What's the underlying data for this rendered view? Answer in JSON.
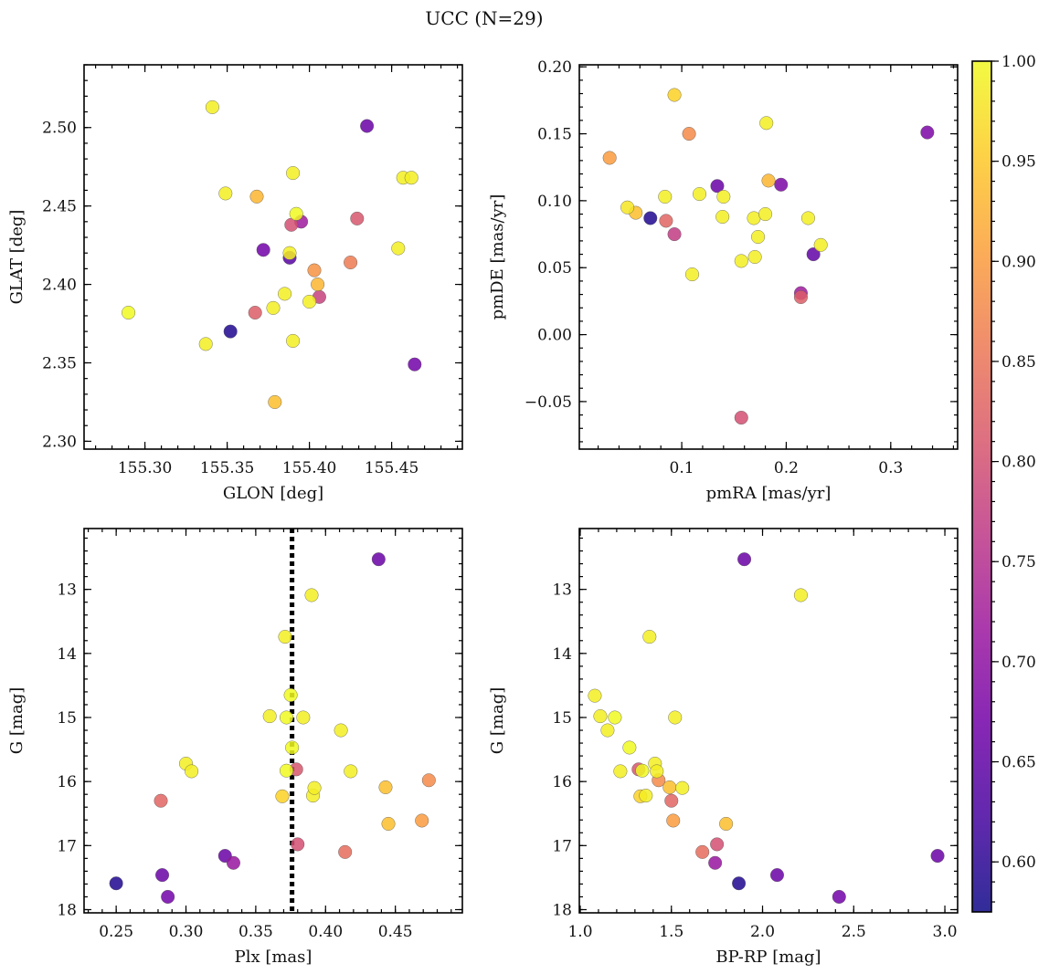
{
  "chart_data": {
    "title": "UCC (N=29)",
    "colorbar": {
      "range": [
        0.575,
        1.0
      ],
      "ticks": [
        "0.60",
        "0.65",
        "0.70",
        "0.75",
        "0.80",
        "0.85",
        "0.90",
        "0.95",
        "1.00"
      ],
      "colormap": "plasma",
      "colormap_stops": [
        "#0d0887",
        "#46039f",
        "#7201a8",
        "#9c179e",
        "#bd3786",
        "#d8576b",
        "#ed7953",
        "#fb9f3a",
        "#fdca26",
        "#f0f921"
      ]
    },
    "panels": [
      {
        "type": "scatter",
        "xlabel": "GLON [deg]",
        "ylabel": "GLAT [deg]",
        "xlim": [
          155.263,
          155.493
        ],
        "ylim": [
          2.295,
          2.54
        ],
        "y_inverted": false,
        "xticks": [
          "155.30",
          "155.35",
          "155.40",
          "155.45"
        ],
        "yticks": [
          "2.30",
          "2.35",
          "2.40",
          "2.45",
          "2.50"
        ],
        "points": [
          {
            "x": 155.29,
            "y": 2.382,
            "p": 1.0
          },
          {
            "x": 155.341,
            "y": 2.513,
            "p": 0.99
          },
          {
            "x": 155.337,
            "y": 2.362,
            "p": 0.99
          },
          {
            "x": 155.349,
            "y": 2.458,
            "p": 0.99
          },
          {
            "x": 155.352,
            "y": 2.37,
            "p": 0.59
          },
          {
            "x": 155.367,
            "y": 2.382,
            "p": 0.82
          },
          {
            "x": 155.368,
            "y": 2.456,
            "p": 0.93
          },
          {
            "x": 155.372,
            "y": 2.422,
            "p": 0.67
          },
          {
            "x": 155.378,
            "y": 2.385,
            "p": 0.99
          },
          {
            "x": 155.379,
            "y": 2.325,
            "p": 0.94
          },
          {
            "x": 155.385,
            "y": 2.394,
            "p": 0.99
          },
          {
            "x": 155.388,
            "y": 2.417,
            "p": 0.64
          },
          {
            "x": 155.388,
            "y": 2.42,
            "p": 0.99
          },
          {
            "x": 155.389,
            "y": 2.438,
            "p": 0.8
          },
          {
            "x": 155.39,
            "y": 2.364,
            "p": 0.99
          },
          {
            "x": 155.39,
            "y": 2.471,
            "p": 0.99
          },
          {
            "x": 155.392,
            "y": 2.445,
            "p": 1.0
          },
          {
            "x": 155.395,
            "y": 2.44,
            "p": 0.72
          },
          {
            "x": 155.4,
            "y": 2.389,
            "p": 0.99
          },
          {
            "x": 155.403,
            "y": 2.409,
            "p": 0.89
          },
          {
            "x": 155.405,
            "y": 2.4,
            "p": 0.93
          },
          {
            "x": 155.406,
            "y": 2.392,
            "p": 0.78
          },
          {
            "x": 155.425,
            "y": 2.414,
            "p": 0.86
          },
          {
            "x": 155.429,
            "y": 2.442,
            "p": 0.81
          },
          {
            "x": 155.435,
            "y": 2.501,
            "p": 0.66
          },
          {
            "x": 155.454,
            "y": 2.423,
            "p": 0.99
          },
          {
            "x": 155.457,
            "y": 2.468,
            "p": 0.99
          },
          {
            "x": 155.462,
            "y": 2.468,
            "p": 0.99
          },
          {
            "x": 155.464,
            "y": 2.349,
            "p": 0.67
          }
        ]
      },
      {
        "type": "scatter",
        "xlabel": "pmRA [mas/yr]",
        "ylabel": "pmDE [mas/yr]",
        "xlim": [
          0.002,
          0.364
        ],
        "ylim": [
          -0.0855,
          0.2015
        ],
        "y_inverted": false,
        "xticks": [
          "0.1",
          "0.2",
          "0.3"
        ],
        "yticks": [
          "−0.05",
          "0.00",
          "0.05",
          "0.10",
          "0.15",
          "0.20"
        ],
        "points": [
          {
            "x": 0.031,
            "y": 0.132,
            "p": 0.9
          },
          {
            "x": 0.048,
            "y": 0.095,
            "p": 0.98
          },
          {
            "x": 0.056,
            "y": 0.091,
            "p": 0.94
          },
          {
            "x": 0.07,
            "y": 0.087,
            "p": 0.59
          },
          {
            "x": 0.084,
            "y": 0.103,
            "p": 0.99
          },
          {
            "x": 0.085,
            "y": 0.085,
            "p": 0.83
          },
          {
            "x": 0.093,
            "y": 0.075,
            "p": 0.77
          },
          {
            "x": 0.093,
            "y": 0.179,
            "p": 0.96
          },
          {
            "x": 0.107,
            "y": 0.15,
            "p": 0.88
          },
          {
            "x": 0.11,
            "y": 0.045,
            "p": 0.99
          },
          {
            "x": 0.117,
            "y": 0.105,
            "p": 0.99
          },
          {
            "x": 0.134,
            "y": 0.111,
            "p": 0.66
          },
          {
            "x": 0.139,
            "y": 0.088,
            "p": 0.99
          },
          {
            "x": 0.14,
            "y": 0.103,
            "p": 0.99
          },
          {
            "x": 0.157,
            "y": -0.062,
            "p": 0.8
          },
          {
            "x": 0.157,
            "y": 0.055,
            "p": 0.99
          },
          {
            "x": 0.169,
            "y": 0.087,
            "p": 0.99
          },
          {
            "x": 0.17,
            "y": 0.058,
            "p": 0.99
          },
          {
            "x": 0.173,
            "y": 0.073,
            "p": 0.99
          },
          {
            "x": 0.18,
            "y": 0.09,
            "p": 0.99
          },
          {
            "x": 0.181,
            "y": 0.158,
            "p": 0.99
          },
          {
            "x": 0.183,
            "y": 0.115,
            "p": 0.93
          },
          {
            "x": 0.195,
            "y": 0.112,
            "p": 0.68
          },
          {
            "x": 0.214,
            "y": 0.031,
            "p": 0.72
          },
          {
            "x": 0.214,
            "y": 0.028,
            "p": 0.82
          },
          {
            "x": 0.221,
            "y": 0.087,
            "p": 0.99
          },
          {
            "x": 0.226,
            "y": 0.06,
            "p": 0.65
          },
          {
            "x": 0.233,
            "y": 0.067,
            "p": 0.99
          },
          {
            "x": 0.335,
            "y": 0.151,
            "p": 0.68
          }
        ]
      },
      {
        "type": "scatter",
        "xlabel": "Plx [mas]",
        "ylabel": "G [mag]",
        "xlim": [
          0.227,
          0.498
        ],
        "ylim": [
          12.05,
          18.05
        ],
        "y_inverted": true,
        "xticks": [
          "0.25",
          "0.30",
          "0.35",
          "0.40",
          "0.45"
        ],
        "yticks": [
          "13",
          "14",
          "15",
          "16",
          "17",
          "18"
        ],
        "vline": {
          "x": 0.376,
          "style": "dotted",
          "color": "#000000"
        },
        "points": [
          {
            "x": 0.25,
            "y": 17.59,
            "p": 0.59
          },
          {
            "x": 0.282,
            "y": 16.3,
            "p": 0.83
          },
          {
            "x": 0.283,
            "y": 17.46,
            "p": 0.66
          },
          {
            "x": 0.287,
            "y": 17.8,
            "p": 0.67
          },
          {
            "x": 0.3,
            "y": 15.72,
            "p": 0.99
          },
          {
            "x": 0.304,
            "y": 15.84,
            "p": 0.99
          },
          {
            "x": 0.328,
            "y": 17.16,
            "p": 0.66
          },
          {
            "x": 0.334,
            "y": 17.27,
            "p": 0.71
          },
          {
            "x": 0.36,
            "y": 14.98,
            "p": 0.99
          },
          {
            "x": 0.369,
            "y": 16.23,
            "p": 0.96
          },
          {
            "x": 0.371,
            "y": 13.74,
            "p": 0.99
          },
          {
            "x": 0.372,
            "y": 15.0,
            "p": 1.0
          },
          {
            "x": 0.372,
            "y": 15.83,
            "p": 1.0
          },
          {
            "x": 0.375,
            "y": 14.65,
            "p": 1.0
          },
          {
            "x": 0.376,
            "y": 15.47,
            "p": 1.0
          },
          {
            "x": 0.379,
            "y": 15.81,
            "p": 0.81
          },
          {
            "x": 0.38,
            "y": 16.98,
            "p": 0.8
          },
          {
            "x": 0.384,
            "y": 15.0,
            "p": 0.99
          },
          {
            "x": 0.39,
            "y": 13.09,
            "p": 0.99
          },
          {
            "x": 0.391,
            "y": 16.22,
            "p": 0.99
          },
          {
            "x": 0.392,
            "y": 16.1,
            "p": 0.99
          },
          {
            "x": 0.411,
            "y": 15.2,
            "p": 0.99
          },
          {
            "x": 0.414,
            "y": 17.1,
            "p": 0.84
          },
          {
            "x": 0.418,
            "y": 15.84,
            "p": 0.99
          },
          {
            "x": 0.438,
            "y": 12.53,
            "p": 0.66
          },
          {
            "x": 0.443,
            "y": 16.09,
            "p": 0.94
          },
          {
            "x": 0.445,
            "y": 16.66,
            "p": 0.94
          },
          {
            "x": 0.469,
            "y": 16.61,
            "p": 0.9
          },
          {
            "x": 0.474,
            "y": 15.98,
            "p": 0.88
          }
        ]
      },
      {
        "type": "scatter",
        "xlabel": "BP-RP [mag]",
        "ylabel": "G [mag]",
        "xlim": [
          0.995,
          3.07
        ],
        "ylim": [
          12.05,
          18.05
        ],
        "y_inverted": true,
        "xticks": [
          "1.0",
          "1.5",
          "2.0",
          "2.5",
          "3.0"
        ],
        "yticks": [
          "13",
          "14",
          "15",
          "16",
          "17",
          "18"
        ],
        "points": [
          {
            "x": 1.08,
            "y": 14.66,
            "p": 0.99
          },
          {
            "x": 1.11,
            "y": 14.98,
            "p": 0.99
          },
          {
            "x": 1.15,
            "y": 15.2,
            "p": 0.99
          },
          {
            "x": 1.19,
            "y": 15.0,
            "p": 1.0
          },
          {
            "x": 1.22,
            "y": 15.84,
            "p": 0.99
          },
          {
            "x": 1.27,
            "y": 15.47,
            "p": 1.0
          },
          {
            "x": 1.32,
            "y": 15.81,
            "p": 0.81
          },
          {
            "x": 1.33,
            "y": 16.23,
            "p": 0.96
          },
          {
            "x": 1.34,
            "y": 15.83,
            "p": 1.0
          },
          {
            "x": 1.36,
            "y": 16.22,
            "p": 0.99
          },
          {
            "x": 1.38,
            "y": 13.74,
            "p": 0.99
          },
          {
            "x": 1.41,
            "y": 15.72,
            "p": 0.99
          },
          {
            "x": 1.42,
            "y": 15.84,
            "p": 0.99
          },
          {
            "x": 1.43,
            "y": 15.98,
            "p": 0.88
          },
          {
            "x": 1.49,
            "y": 16.09,
            "p": 0.94
          },
          {
            "x": 1.5,
            "y": 16.3,
            "p": 0.83
          },
          {
            "x": 1.51,
            "y": 16.61,
            "p": 0.9
          },
          {
            "x": 1.52,
            "y": 15.0,
            "p": 0.99
          },
          {
            "x": 1.56,
            "y": 16.1,
            "p": 0.99
          },
          {
            "x": 1.67,
            "y": 17.1,
            "p": 0.84
          },
          {
            "x": 1.74,
            "y": 17.27,
            "p": 0.71
          },
          {
            "x": 1.75,
            "y": 16.98,
            "p": 0.8
          },
          {
            "x": 1.8,
            "y": 16.66,
            "p": 0.94
          },
          {
            "x": 1.87,
            "y": 17.59,
            "p": 0.59
          },
          {
            "x": 1.9,
            "y": 12.53,
            "p": 0.66
          },
          {
            "x": 2.08,
            "y": 17.46,
            "p": 0.66
          },
          {
            "x": 2.21,
            "y": 13.09,
            "p": 0.99
          },
          {
            "x": 2.42,
            "y": 17.8,
            "p": 0.67
          },
          {
            "x": 2.96,
            "y": 17.16,
            "p": 0.66
          }
        ]
      }
    ]
  }
}
